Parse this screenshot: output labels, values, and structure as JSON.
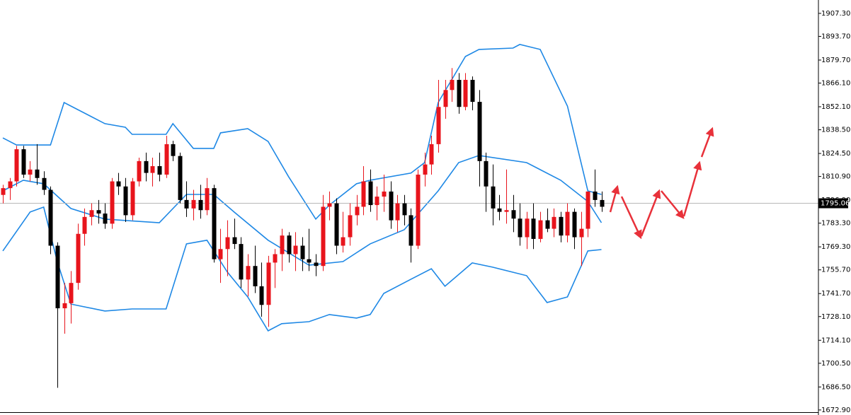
{
  "chart_data": {
    "type": "candlestick",
    "up_color": "#e8141c",
    "down_color": "#000000",
    "open": [
      1800,
      1804,
      1808,
      1827,
      1812,
      1815,
      1810,
      1803,
      1770,
      1733,
      1736,
      1748,
      1777,
      1787,
      1791,
      1789,
      1783,
      1808,
      1805,
      1788,
      1808,
      1820,
      1813,
      1817,
      1812,
      1830,
      1823,
      1797,
      1792,
      1797,
      1791,
      1804,
      1762,
      1768,
      1775,
      1771,
      1750,
      1758,
      1746,
      1735,
      1760,
      1765,
      1776,
      1765,
      1770,
      1762,
      1760,
      1758,
      1793,
      1795,
      1770,
      1775,
      1788,
      1793,
      1808,
      1794,
      1799,
      1802,
      1785,
      1795,
      1788,
      1770,
      1812,
      1818,
      1830,
      1852,
      1862,
      1868,
      1852,
      1868,
      1855,
      1820,
      1805,
      1792,
      1790,
      1791,
      1786,
      1775,
      1786,
      1774,
      1785,
      1780,
      1787,
      1776,
      1790,
      1775,
      1780,
      1802,
      1797
    ],
    "high": [
      1806,
      1810,
      1829,
      1829,
      1820,
      1830,
      1814,
      1805,
      1772,
      1748,
      1755,
      1783,
      1792,
      1795,
      1797,
      1795,
      1810,
      1813,
      1810,
      1810,
      1822,
      1825,
      1822,
      1825,
      1835,
      1832,
      1825,
      1808,
      1803,
      1806,
      1810,
      1806,
      1780,
      1785,
      1786,
      1775,
      1765,
      1770,
      1760,
      1764,
      1768,
      1780,
      1778,
      1778,
      1775,
      1780,
      1765,
      1800,
      1802,
      1798,
      1790,
      1795,
      1800,
      1817,
      1815,
      1805,
      1812,
      1808,
      1800,
      1800,
      1792,
      1815,
      1825,
      1835,
      1868,
      1868,
      1875,
      1872,
      1872,
      1870,
      1862,
      1825,
      1818,
      1800,
      1815,
      1800,
      1795,
      1790,
      1795,
      1790,
      1792,
      1792,
      1790,
      1795,
      1792,
      1790,
      1802,
      1815,
      1802
    ],
    "low": [
      1795,
      1797,
      1805,
      1810,
      1808,
      1806,
      1800,
      1765,
      1686,
      1718,
      1724,
      1744,
      1770,
      1782,
      1783,
      1780,
      1780,
      1800,
      1784,
      1785,
      1805,
      1808,
      1805,
      1808,
      1810,
      1820,
      1795,
      1787,
      1785,
      1786,
      1788,
      1760,
      1748,
      1752,
      1768,
      1745,
      1740,
      1742,
      1728,
      1722,
      1745,
      1755,
      1760,
      1755,
      1755,
      1755,
      1752,
      1755,
      1785,
      1765,
      1766,
      1770,
      1782,
      1788,
      1790,
      1785,
      1790,
      1780,
      1778,
      1782,
      1760,
      1768,
      1805,
      1812,
      1825,
      1845,
      1855,
      1848,
      1850,
      1850,
      1805,
      1790,
      1782,
      1785,
      1783,
      1778,
      1770,
      1768,
      1768,
      1772,
      1778,
      1775,
      1772,
      1772,
      1768,
      1758,
      1775,
      1793,
      1790
    ],
    "close": [
      1804,
      1808,
      1827,
      1812,
      1815,
      1810,
      1803,
      1770,
      1733,
      1736,
      1748,
      1777,
      1787,
      1791,
      1789,
      1783,
      1808,
      1805,
      1788,
      1808,
      1820,
      1813,
      1817,
      1812,
      1830,
      1823,
      1797,
      1792,
      1797,
      1791,
      1804,
      1762,
      1768,
      1775,
      1771,
      1750,
      1758,
      1746,
      1735,
      1760,
      1765,
      1776,
      1765,
      1770,
      1762,
      1760,
      1758,
      1793,
      1795,
      1770,
      1775,
      1788,
      1793,
      1808,
      1794,
      1799,
      1802,
      1785,
      1795,
      1788,
      1770,
      1812,
      1818,
      1830,
      1852,
      1862,
      1868,
      1852,
      1868,
      1855,
      1820,
      1805,
      1792,
      1790,
      1791,
      1786,
      1775,
      1786,
      1774,
      1785,
      1780,
      1787,
      1776,
      1790,
      1775,
      1780,
      1802,
      1797,
      1793
    ],
    "bands": [
      {
        "color": "#1e88e5",
        "x": [
          0,
          2,
          7,
          9,
          15,
          18,
          19,
          24,
          25,
          28,
          31,
          32,
          36,
          39,
          42,
          46,
          48,
          52,
          54,
          60,
          62,
          64,
          68,
          70,
          75,
          76,
          79,
          83,
          86,
          88
        ],
        "values": [
          1833.7,
          1829.5,
          1829.5,
          1854.6,
          1842.1,
          1840,
          1835.8,
          1835.8,
          1842.1,
          1827.5,
          1827.5,
          1836.7,
          1839.2,
          1831.6,
          1810.8,
          1785.7,
          1794,
          1806.6,
          1808.7,
          1812.9,
          1819.1,
          1854.6,
          1881.8,
          1886,
          1886.8,
          1888.9,
          1886,
          1852.5,
          1802.4,
          1800.3
        ]
      },
      {
        "color": "#1e88e5",
        "x": [
          0,
          3,
          6,
          10,
          15,
          23,
          27,
          31,
          34,
          39,
          45,
          50,
          54,
          59,
          64,
          67,
          70,
          77,
          82,
          86,
          88
        ],
        "values": [
          1802.4,
          1808.7,
          1806.6,
          1792,
          1785.7,
          1783.6,
          1800.3,
          1800.3,
          1789.9,
          1773.2,
          1758.5,
          1760.6,
          1771.1,
          1779.4,
          1802.4,
          1819.1,
          1823.3,
          1819.1,
          1808.7,
          1796.1,
          1783.6
        ]
      },
      {
        "color": "#1e88e5",
        "x": [
          0,
          4,
          6,
          8,
          10,
          15,
          19,
          24,
          27,
          30,
          33,
          36,
          39,
          41,
          45,
          48,
          52,
          54,
          56,
          60,
          63,
          65,
          69,
          72,
          77,
          80,
          83,
          86,
          88
        ],
        "values": [
          1766.9,
          1789.9,
          1792.8,
          1760.6,
          1735.5,
          1731.4,
          1732.6,
          1732.6,
          1771.1,
          1773.2,
          1754.4,
          1739.7,
          1719.7,
          1723.9,
          1725.1,
          1729.3,
          1727.2,
          1729.3,
          1741.8,
          1750.2,
          1756.4,
          1746,
          1759.8,
          1757.3,
          1752.3,
          1736.4,
          1739.7,
          1766.9,
          1767.7
        ]
      }
    ],
    "last_price": {
      "value": 1795.06,
      "label": "1795.06"
    },
    "xlim": [
      -0.42,
      119.9
    ],
    "ylim": [
      1671.6,
      1915.2
    ],
    "yticks": [
      {
        "value": 1907.3,
        "label": "1907.30"
      },
      {
        "value": 1893.7,
        "label": "1893.70"
      },
      {
        "value": 1879.7,
        "label": "1879.70"
      },
      {
        "value": 1866.1,
        "label": "1866.10"
      },
      {
        "value": 1852.1,
        "label": "1852.10"
      },
      {
        "value": 1838.5,
        "label": "1838.50"
      },
      {
        "value": 1824.5,
        "label": "1824.50"
      },
      {
        "value": 1810.9,
        "label": "1810.90"
      },
      {
        "value": 1796.9,
        "label": "1796.90"
      },
      {
        "value": 1783.3,
        "label": "1783.30"
      },
      {
        "value": 1769.3,
        "label": "1769.30"
      },
      {
        "value": 1755.7,
        "label": "1755.70"
      },
      {
        "value": 1741.7,
        "label": "1741.70"
      },
      {
        "value": 1728.1,
        "label": "1728.10"
      },
      {
        "value": 1714.1,
        "label": "1714.10"
      },
      {
        "value": 1700.5,
        "label": "1700.50"
      },
      {
        "value": 1686.5,
        "label": "1686.50"
      },
      {
        "value": 1672.9,
        "label": "1672.90"
      }
    ]
  }
}
